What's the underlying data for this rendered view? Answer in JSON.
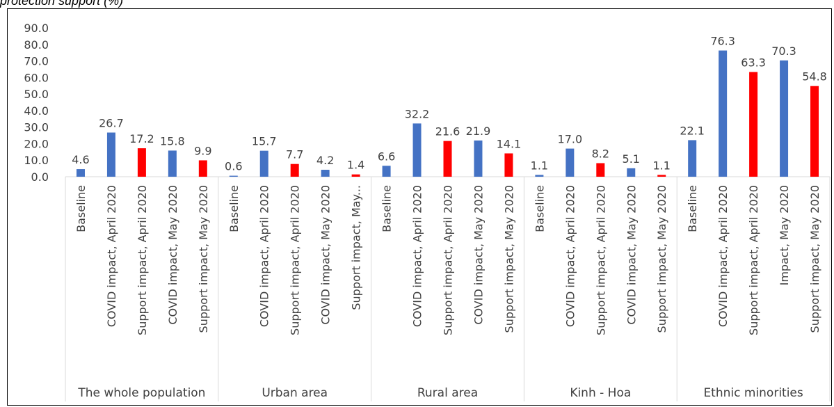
{
  "caption": "protection support (%)",
  "chart_data": {
    "type": "bar",
    "ylim": [
      0,
      90
    ],
    "yticks": [
      "0.0",
      "10.0",
      "20.0",
      "30.0",
      "40.0",
      "50.0",
      "60.0",
      "70.0",
      "80.0",
      "90.0"
    ],
    "colors": {
      "blue": "#4472C4",
      "red": "#FF0000"
    },
    "grid": false,
    "groups": [
      {
        "name": "The whole population",
        "bars": [
          {
            "label": "Baseline",
            "value": 4.6,
            "text": "4.6",
            "color": "blue"
          },
          {
            "label": "COVID impact, April 2020",
            "value": 26.7,
            "text": "26.7",
            "color": "blue"
          },
          {
            "label": "Support impact, April 2020",
            "value": 17.2,
            "text": "17.2",
            "color": "red"
          },
          {
            "label": "COVID impact, May 2020",
            "value": 15.8,
            "text": "15.8",
            "color": "blue"
          },
          {
            "label": "Support impact, May 2020",
            "value": 9.9,
            "text": "9.9",
            "color": "red"
          }
        ]
      },
      {
        "name": "Urban area",
        "bars": [
          {
            "label": "Baseline",
            "value": 0.6,
            "text": "0.6",
            "color": "blue"
          },
          {
            "label": "COVID impact, April 2020",
            "value": 15.7,
            "text": "15.7",
            "color": "blue"
          },
          {
            "label": "Support impact, April 2020",
            "value": 7.7,
            "text": "7.7",
            "color": "red"
          },
          {
            "label": "COVID impact, May 2020",
            "value": 4.2,
            "text": "4.2",
            "color": "blue"
          },
          {
            "label": "Support impact, May...",
            "value": 1.4,
            "text": "1.4",
            "color": "red"
          }
        ]
      },
      {
        "name": "Rural area",
        "bars": [
          {
            "label": "Baseline",
            "value": 6.6,
            "text": "6.6",
            "color": "blue"
          },
          {
            "label": "COVID impact, April 2020",
            "value": 32.2,
            "text": "32.2",
            "color": "blue"
          },
          {
            "label": "Support impact, April 2020",
            "value": 21.6,
            "text": "21.6",
            "color": "red"
          },
          {
            "label": "COVID impact, May 2020",
            "value": 21.9,
            "text": "21.9",
            "color": "blue"
          },
          {
            "label": "Support impact, May 2020",
            "value": 14.1,
            "text": "14.1",
            "color": "red"
          }
        ]
      },
      {
        "name": "Kinh - Hoa",
        "bars": [
          {
            "label": "Baseline",
            "value": 1.1,
            "text": "1.1",
            "color": "blue"
          },
          {
            "label": "COVID impact, April 2020",
            "value": 17.0,
            "text": "17.0",
            "color": "blue"
          },
          {
            "label": "Support impact, April 2020",
            "value": 8.2,
            "text": "8.2",
            "color": "red"
          },
          {
            "label": "COVID impact, May 2020",
            "value": 5.1,
            "text": "5.1",
            "color": "blue"
          },
          {
            "label": "Support impact, May 2020",
            "value": 1.1,
            "text": "1.1",
            "color": "red"
          }
        ]
      },
      {
        "name": "Ethnic minorities",
        "bars": [
          {
            "label": "Baseline",
            "value": 22.1,
            "text": "22.1",
            "color": "blue"
          },
          {
            "label": "COVID impact, April 2020",
            "value": 76.3,
            "text": "76.3",
            "color": "blue"
          },
          {
            "label": "Support impact, April 2020",
            "value": 63.3,
            "text": "63.3",
            "color": "red"
          },
          {
            "label": "Impact, May 2020",
            "value": 70.3,
            "text": "70.3",
            "color": "blue"
          },
          {
            "label": "Support impact, May 2020",
            "value": 54.8,
            "text": "54.8",
            "color": "red"
          }
        ]
      }
    ]
  }
}
